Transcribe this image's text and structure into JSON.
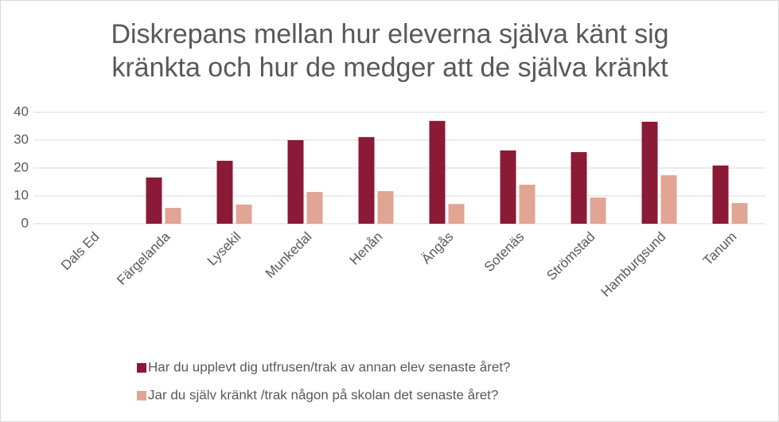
{
  "chart_data": {
    "type": "bar",
    "title": "Diskrepans mellan hur eleverna själva känt sig kränkta och hur de medger att de själva kränkt",
    "categories": [
      "Dals Ed",
      "Färgelanda",
      "Lysekil",
      "Munkedal",
      "Henån",
      "Ängås",
      "Sotenäs",
      "Strömstad",
      "Hamburgsund",
      "Tanum"
    ],
    "series": [
      {
        "name": "Har du upplevt dig utfrusen/trak av annan elev senaste året?",
        "color": "#8b1a36",
        "values": [
          null,
          16.6,
          22.6,
          30,
          31.1,
          36.9,
          26.3,
          25.7,
          36.6,
          20.9
        ]
      },
      {
        "name": "Jar du själv kränkt /trak någon på skolan det senaste året?",
        "color": "#e0a593",
        "values": [
          null,
          5.7,
          6.9,
          11.4,
          11.7,
          7.1,
          14,
          9.4,
          17.4,
          7.4
        ]
      }
    ],
    "ylim": [
      0,
      40
    ],
    "yticks": [
      0,
      10,
      20,
      30,
      40
    ],
    "grid": true,
    "legend": "bottom"
  }
}
